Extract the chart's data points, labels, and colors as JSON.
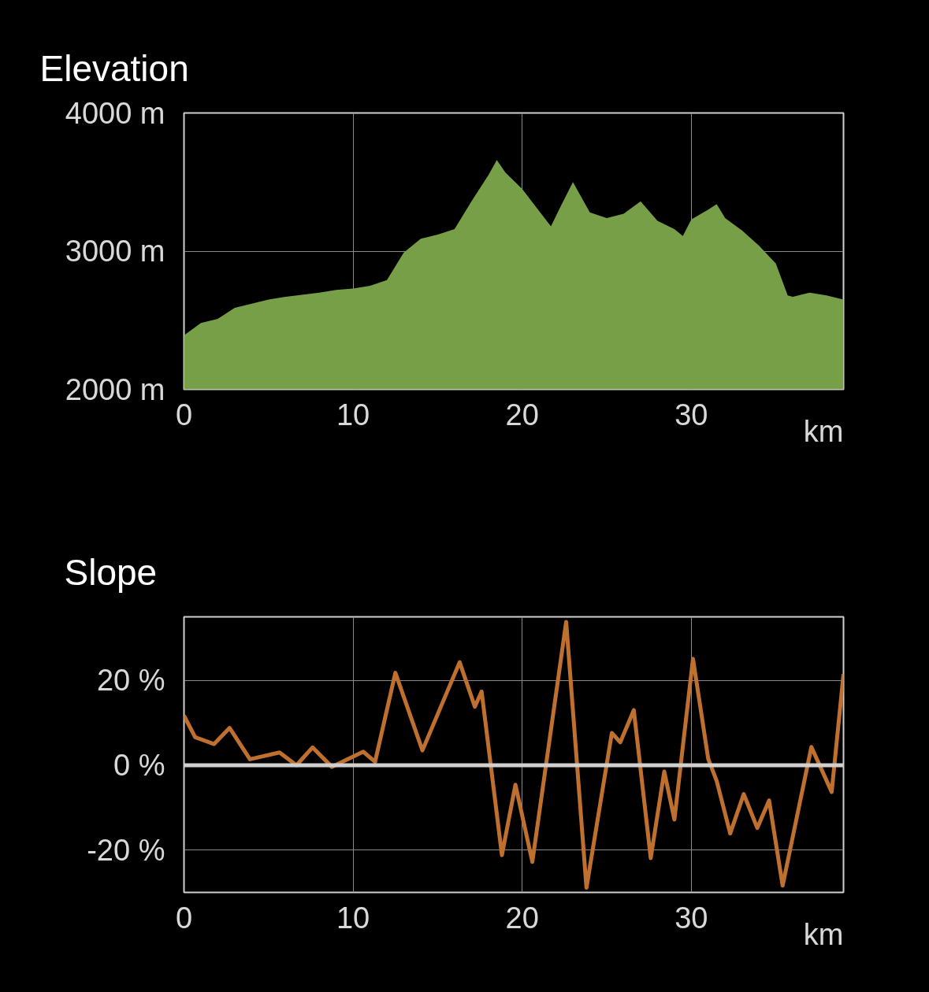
{
  "chart_data": [
    {
      "type": "area",
      "title": "Elevation",
      "xlabel": "km",
      "color": "#779f47",
      "x": [
        0,
        1,
        2,
        3,
        4,
        5,
        6,
        8,
        9,
        10,
        11,
        12,
        13,
        14,
        15,
        16,
        17,
        18,
        18.5,
        19,
        20,
        21,
        21.7,
        22.3,
        23,
        24,
        25,
        26,
        27,
        28,
        29,
        29.5,
        30,
        31,
        31.5,
        32,
        33,
        34,
        35,
        35.7,
        36,
        37,
        38,
        39
      ],
      "values": [
        2390,
        2480,
        2510,
        2590,
        2620,
        2650,
        2670,
        2700,
        2720,
        2730,
        2750,
        2790,
        2990,
        3090,
        3120,
        3160,
        3360,
        3550,
        3660,
        3570,
        3450,
        3290,
        3180,
        3330,
        3500,
        3280,
        3240,
        3270,
        3360,
        3220,
        3160,
        3110,
        3230,
        3300,
        3340,
        3240,
        3150,
        3040,
        2910,
        2680,
        2670,
        2700,
        2680,
        2650
      ],
      "xlim": [
        0,
        39
      ],
      "xticks": [
        0,
        10,
        20,
        30
      ],
      "ylim": [
        2000,
        4000
      ],
      "yticks": [
        {
          "value": 2000,
          "label": "2000 m"
        },
        {
          "value": 3000,
          "label": "3000 m"
        },
        {
          "value": 4000,
          "label": "4000 m"
        }
      ],
      "grid": true
    },
    {
      "type": "line",
      "title": "Slope",
      "xlabel": "km",
      "color": "#c0702e",
      "x": [
        0,
        0.66,
        1.78,
        2.7,
        3.9,
        5.65,
        6.65,
        7.6,
        8.75,
        10.6,
        11.3,
        12.5,
        14.1,
        16.3,
        17.2,
        17.6,
        18.8,
        19.6,
        20.6,
        22.6,
        23.8,
        25.3,
        25.8,
        26.6,
        27.6,
        28.4,
        29.0,
        30.1,
        31.0,
        31.5,
        32.3,
        33.1,
        33.9,
        34.6,
        35.4,
        37.1,
        38.3,
        39.0
      ],
      "values": [
        11.7,
        6.6,
        5.0,
        8.8,
        1.4,
        3.0,
        0,
        4.2,
        -0.4,
        3.2,
        0.8,
        21.8,
        3.5,
        24.3,
        13.8,
        17.4,
        -21.2,
        -4.6,
        -22.8,
        33.8,
        -28.9,
        7.6,
        5.4,
        13.0,
        -21.9,
        -1.5,
        -12.8,
        25.1,
        1.5,
        -3.7,
        -16.1,
        -6.8,
        -14.8,
        -8.3,
        -28.4,
        4.3,
        -6.3,
        21.5
      ],
      "xlim": [
        0,
        39
      ],
      "xticks": [
        0,
        10,
        20,
        30
      ],
      "ylim": [
        -30,
        35
      ],
      "yticks": [
        {
          "value": -20,
          "label": "-20 %"
        },
        {
          "value": 0,
          "label": "0 %"
        },
        {
          "value": 20,
          "label": "20 %"
        }
      ],
      "ref_lines": [
        {
          "axis": "y",
          "value": 0,
          "color": "#d0d0d0"
        }
      ],
      "grid": true
    }
  ]
}
